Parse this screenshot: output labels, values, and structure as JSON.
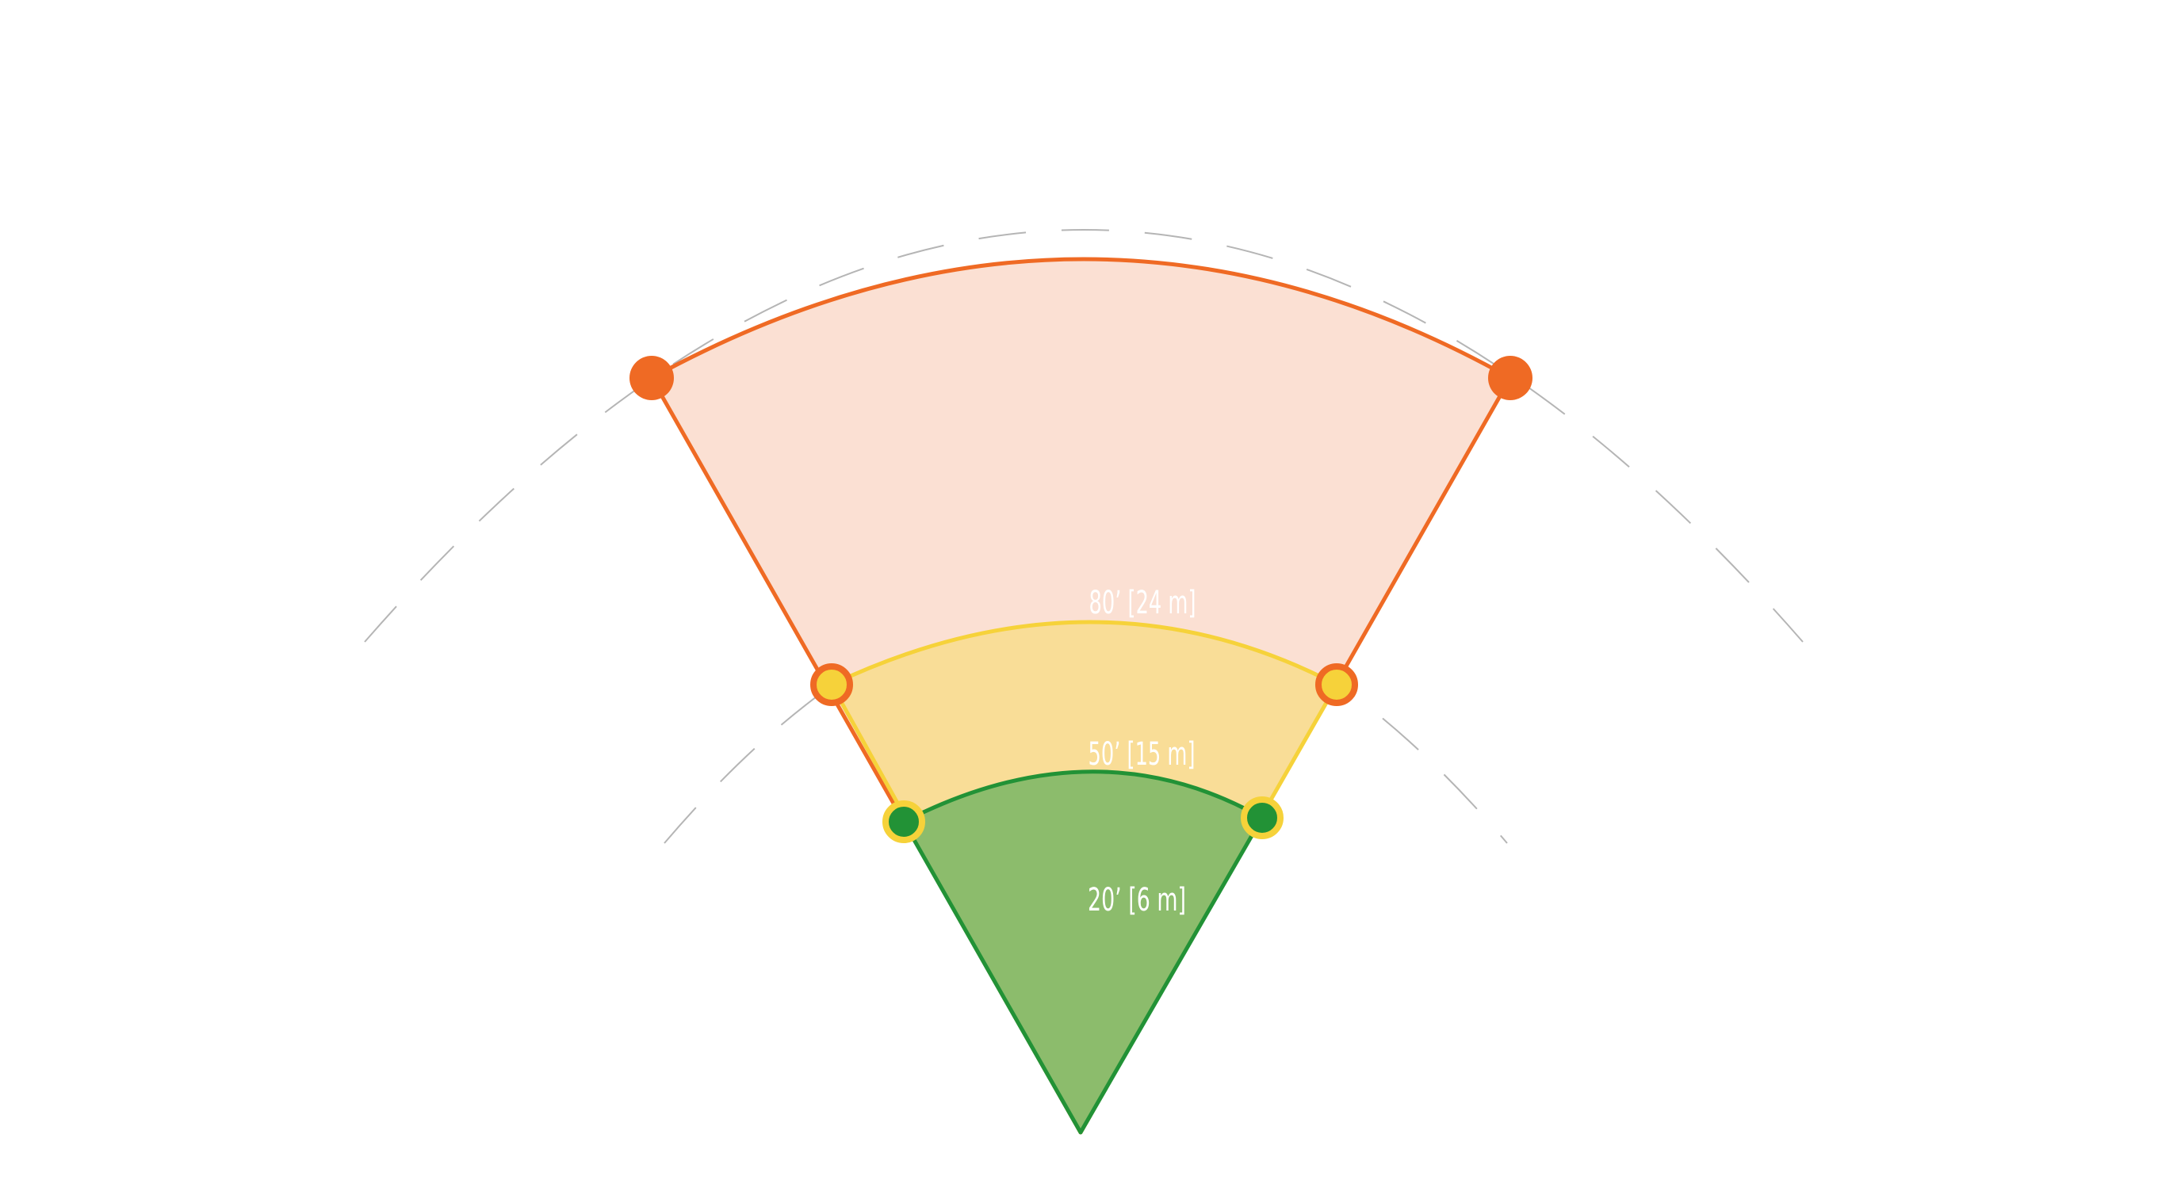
{
  "zones": [
    {
      "label": "80’ [24 m]"
    },
    {
      "label": "50’ [15 m]"
    },
    {
      "label": "20’ [6 m]"
    }
  ]
}
